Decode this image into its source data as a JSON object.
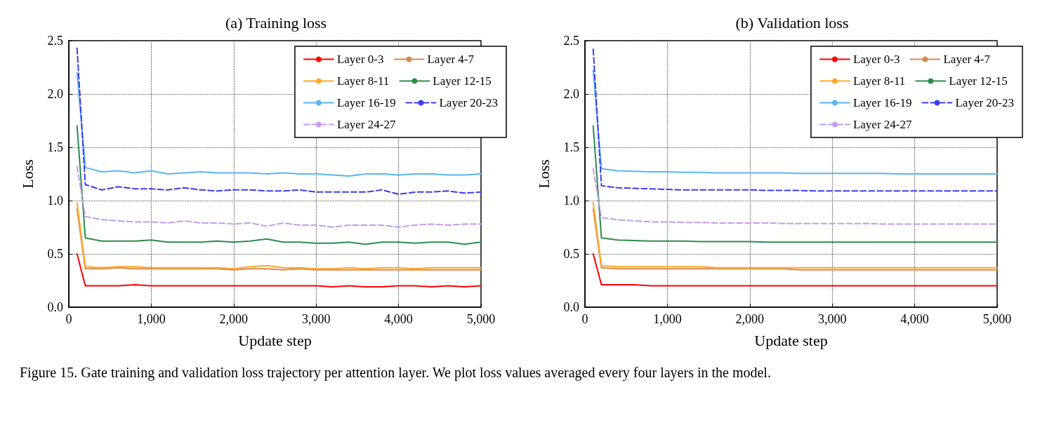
{
  "chart_data": [
    {
      "type": "line",
      "title": "(a) Training loss",
      "xlabel": "Update step",
      "ylabel": "Loss",
      "legend": "top right",
      "grid": true,
      "annotations": [
        "Figure 15. Gate training and validation loss trajectory per attention layer. We plot loss values averaged every four layers in the model."
      ],
      "xlim": [
        0,
        5000
      ],
      "xticks": [
        0,
        {
          "value": 1000,
          "label": "1,000"
        },
        {
          "value": 2000,
          "label": "2,000"
        },
        {
          "value": 3000,
          "label": "3,000"
        },
        {
          "value": 4000,
          "label": "4,000"
        },
        {
          "value": 5000,
          "label": "5,000"
        }
      ],
      "ylim": [
        0,
        2.5
      ],
      "yticks": [
        {
          "value": 0,
          "label": "0.0"
        },
        0.5,
        {
          "value": 1,
          "label": "1.0"
        },
        1.5,
        {
          "value": 2,
          "label": "2.0"
        },
        2.5
      ],
      "x": [
        100,
        200,
        400,
        600,
        800,
        1000,
        1200,
        1400,
        1600,
        1800,
        2000,
        2200,
        2400,
        2600,
        2800,
        3000,
        3200,
        3400,
        3600,
        3800,
        4000,
        4200,
        4400,
        4600,
        4800,
        5000
      ],
      "series": [
        {
          "name": "Layer 0-3",
          "color": "#ff0000",
          "line_style": "solid",
          "values": [
            0.5,
            0.2,
            0.2,
            0.2,
            0.21,
            0.2,
            0.2,
            0.2,
            0.2,
            0.2,
            0.2,
            0.2,
            0.2,
            0.2,
            0.2,
            0.2,
            0.19,
            0.2,
            0.19,
            0.19,
            0.2,
            0.2,
            0.19,
            0.2,
            0.19,
            0.2
          ]
        },
        {
          "name": "Layer 4-7",
          "color": "#d9884e",
          "line_style": "solid",
          "values": [
            0.92,
            0.36,
            0.36,
            0.37,
            0.36,
            0.36,
            0.36,
            0.36,
            0.36,
            0.36,
            0.35,
            0.36,
            0.36,
            0.35,
            0.36,
            0.35,
            0.35,
            0.35,
            0.35,
            0.35,
            0.35,
            0.35,
            0.35,
            0.35,
            0.35,
            0.35
          ]
        },
        {
          "name": "Layer 8-11",
          "color": "#ffa726",
          "line_style": "solid",
          "values": [
            0.98,
            0.38,
            0.37,
            0.38,
            0.38,
            0.37,
            0.37,
            0.37,
            0.37,
            0.37,
            0.36,
            0.38,
            0.39,
            0.37,
            0.37,
            0.36,
            0.36,
            0.37,
            0.36,
            0.37,
            0.37,
            0.36,
            0.37,
            0.37,
            0.37,
            0.37
          ]
        },
        {
          "name": "Layer 12-15",
          "color": "#2e8b4e",
          "line_style": "solid",
          "values": [
            1.7,
            0.65,
            0.62,
            0.62,
            0.62,
            0.63,
            0.61,
            0.61,
            0.61,
            0.62,
            0.61,
            0.62,
            0.64,
            0.61,
            0.61,
            0.6,
            0.6,
            0.61,
            0.59,
            0.61,
            0.61,
            0.6,
            0.61,
            0.61,
            0.59,
            0.61
          ]
        },
        {
          "name": "Layer 16-19",
          "color": "#5ab4f0",
          "line_style": "solid",
          "values": [
            2.2,
            1.31,
            1.27,
            1.28,
            1.26,
            1.28,
            1.25,
            1.26,
            1.27,
            1.26,
            1.26,
            1.26,
            1.25,
            1.26,
            1.25,
            1.25,
            1.24,
            1.23,
            1.25,
            1.25,
            1.24,
            1.25,
            1.25,
            1.24,
            1.24,
            1.25
          ]
        },
        {
          "name": "Layer 20-23",
          "color": "#3c3cf0",
          "line_style": "dashed",
          "values": [
            2.43,
            1.15,
            1.1,
            1.13,
            1.11,
            1.11,
            1.1,
            1.12,
            1.1,
            1.09,
            1.1,
            1.1,
            1.09,
            1.09,
            1.1,
            1.08,
            1.08,
            1.08,
            1.08,
            1.1,
            1.06,
            1.08,
            1.08,
            1.09,
            1.07,
            1.08
          ]
        },
        {
          "name": "Layer 24-27",
          "color": "#c39bef",
          "line_style": "dashed",
          "values": [
            1.32,
            0.85,
            0.82,
            0.81,
            0.8,
            0.8,
            0.79,
            0.81,
            0.79,
            0.79,
            0.78,
            0.79,
            0.76,
            0.79,
            0.77,
            0.77,
            0.75,
            0.77,
            0.77,
            0.77,
            0.75,
            0.77,
            0.78,
            0.77,
            0.78,
            0.78
          ]
        }
      ]
    },
    {
      "type": "line",
      "title": "(b) Validation loss",
      "xlabel": "Update step",
      "ylabel": "Loss",
      "legend": "top right",
      "grid": true,
      "xlim": [
        0,
        5000
      ],
      "xticks": [
        0,
        {
          "value": 1000,
          "label": "1,000"
        },
        {
          "value": 2000,
          "label": "2,000"
        },
        {
          "value": 3000,
          "label": "3,000"
        },
        {
          "value": 4000,
          "label": "4,000"
        },
        {
          "value": 5000,
          "label": "5,000"
        }
      ],
      "ylim": [
        0,
        2.5
      ],
      "yticks": [
        {
          "value": 0,
          "label": "0.0"
        },
        0.5,
        {
          "value": 1,
          "label": "1.0"
        },
        1.5,
        {
          "value": 2,
          "label": "2.0"
        },
        2.5
      ],
      "x": [
        100,
        200,
        400,
        600,
        800,
        1000,
        1200,
        1400,
        1600,
        1800,
        2000,
        2200,
        2400,
        2600,
        2800,
        3000,
        3200,
        3400,
        3600,
        3800,
        4000,
        4200,
        4400,
        4600,
        4800,
        5000
      ],
      "series": [
        {
          "name": "Layer 0-3",
          "color": "#ff0000",
          "line_style": "solid",
          "values": [
            0.5,
            0.21,
            0.21,
            0.21,
            0.2,
            0.2,
            0.2,
            0.2,
            0.2,
            0.2,
            0.2,
            0.2,
            0.2,
            0.2,
            0.2,
            0.2,
            0.2,
            0.2,
            0.2,
            0.2,
            0.2,
            0.2,
            0.2,
            0.2,
            0.2,
            0.2
          ]
        },
        {
          "name": "Layer 4-7",
          "color": "#d9884e",
          "line_style": "solid",
          "values": [
            0.92,
            0.37,
            0.36,
            0.36,
            0.36,
            0.36,
            0.36,
            0.36,
            0.36,
            0.36,
            0.36,
            0.36,
            0.36,
            0.35,
            0.35,
            0.35,
            0.35,
            0.35,
            0.35,
            0.35,
            0.35,
            0.35,
            0.35,
            0.35,
            0.35,
            0.35
          ]
        },
        {
          "name": "Layer 8-11",
          "color": "#ffa726",
          "line_style": "solid",
          "values": [
            0.98,
            0.39,
            0.38,
            0.38,
            0.38,
            0.38,
            0.38,
            0.38,
            0.37,
            0.37,
            0.37,
            0.37,
            0.37,
            0.37,
            0.37,
            0.37,
            0.37,
            0.37,
            0.37,
            0.37,
            0.37,
            0.37,
            0.37,
            0.37,
            0.37,
            0.37
          ]
        },
        {
          "name": "Layer 12-15",
          "color": "#2e8b4e",
          "line_style": "solid",
          "values": [
            1.7,
            0.65,
            0.63,
            0.625,
            0.62,
            0.62,
            0.62,
            0.615,
            0.615,
            0.615,
            0.615,
            0.61,
            0.61,
            0.61,
            0.61,
            0.61,
            0.61,
            0.61,
            0.61,
            0.61,
            0.61,
            0.61,
            0.61,
            0.61,
            0.61,
            0.61
          ]
        },
        {
          "name": "Layer 16-19",
          "color": "#5ab4f0",
          "line_style": "solid",
          "values": [
            2.22,
            1.3,
            1.28,
            1.275,
            1.27,
            1.27,
            1.265,
            1.265,
            1.26,
            1.26,
            1.26,
            1.26,
            1.26,
            1.255,
            1.255,
            1.255,
            1.255,
            1.255,
            1.255,
            1.25,
            1.25,
            1.25,
            1.25,
            1.25,
            1.25,
            1.25
          ]
        },
        {
          "name": "Layer 20-23",
          "color": "#3c3cf0",
          "line_style": "dashed",
          "values": [
            2.42,
            1.14,
            1.12,
            1.115,
            1.11,
            1.105,
            1.1,
            1.1,
            1.1,
            1.1,
            1.1,
            1.095,
            1.095,
            1.095,
            1.09,
            1.09,
            1.09,
            1.09,
            1.09,
            1.09,
            1.09,
            1.09,
            1.09,
            1.09,
            1.09,
            1.09
          ]
        },
        {
          "name": "Layer 24-27",
          "color": "#c39bef",
          "line_style": "dashed",
          "values": [
            1.3,
            0.84,
            0.82,
            0.81,
            0.8,
            0.8,
            0.795,
            0.795,
            0.79,
            0.79,
            0.79,
            0.79,
            0.785,
            0.785,
            0.785,
            0.785,
            0.785,
            0.785,
            0.78,
            0.78,
            0.78,
            0.78,
            0.78,
            0.78,
            0.78,
            0.78
          ]
        }
      ]
    }
  ]
}
